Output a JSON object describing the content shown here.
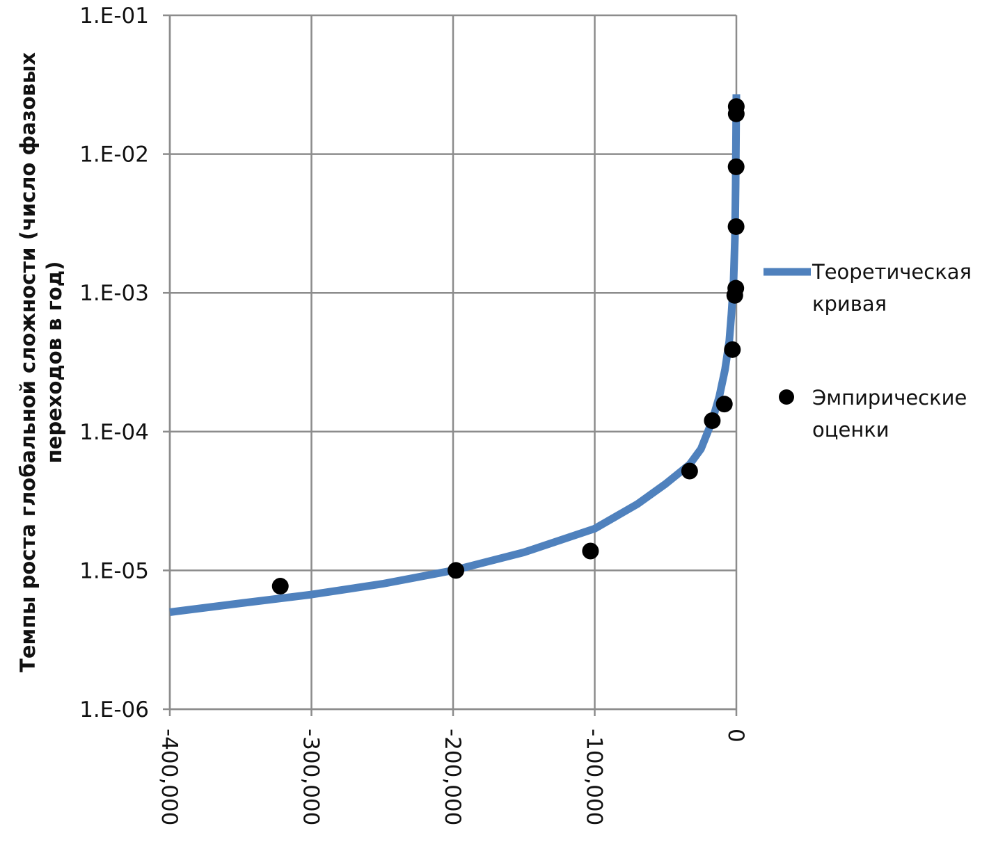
{
  "chart_data": {
    "type": "scatter",
    "title": "",
    "xlabel": "",
    "ylabel_lines": [
      "Темпы роста глобальной сложности (число фазовых",
      "переходов в год)"
    ],
    "x_scale": "linear",
    "y_scale": "log",
    "xlim": [
      -400000,
      0
    ],
    "ylim": [
      1e-06,
      0.1
    ],
    "x_ticks": [
      -400000,
      -300000,
      -200000,
      -100000,
      0
    ],
    "x_tick_labels": [
      "-400,000",
      "-300,000",
      "-200,000",
      "-100,000",
      "0"
    ],
    "y_ticks": [
      1e-06,
      1e-05,
      0.0001,
      0.001,
      0.01,
      0.1
    ],
    "y_tick_labels": [
      "1.E-06",
      "1.E-05",
      "1.E-04",
      "1.E-03",
      "1.E-02",
      "1.E-01"
    ],
    "grid": true,
    "legend_position": "right",
    "series": [
      {
        "name": "Теоретическая кривая",
        "kind": "line",
        "color": "#4f81bd",
        "x": [
          -400000,
          -350000,
          -300000,
          -250000,
          -200000,
          -150000,
          -100000,
          -70000,
          -50000,
          -33000,
          -25000,
          -17000,
          -12000,
          -8000,
          -5000,
          -3500,
          -2000,
          -1000,
          -500,
          0
        ],
        "y": [
          5e-06,
          5.8e-06,
          6.7e-06,
          8e-06,
          1e-05,
          1.35e-05,
          2e-05,
          3e-05,
          4.2e-05,
          5.8e-05,
          7.5e-05,
          0.00012,
          0.00018,
          0.00028,
          0.00045,
          0.0007,
          0.0012,
          0.0025,
          0.006,
          0.027
        ]
      },
      {
        "name": "Эмпирические оценки",
        "kind": "scatter",
        "color": "#000000",
        "x": [
          -322000,
          -198000,
          -103000,
          -33000,
          -17000,
          -8500,
          -2800,
          -1100,
          -400,
          -200,
          -150,
          -80,
          -60
        ],
        "y": [
          7.7e-06,
          1e-05,
          1.38e-05,
          5.2e-05,
          0.00012,
          0.000158,
          0.00039,
          0.00096,
          0.00108,
          0.003,
          0.0081,
          0.0195,
          0.022
        ]
      }
    ]
  }
}
